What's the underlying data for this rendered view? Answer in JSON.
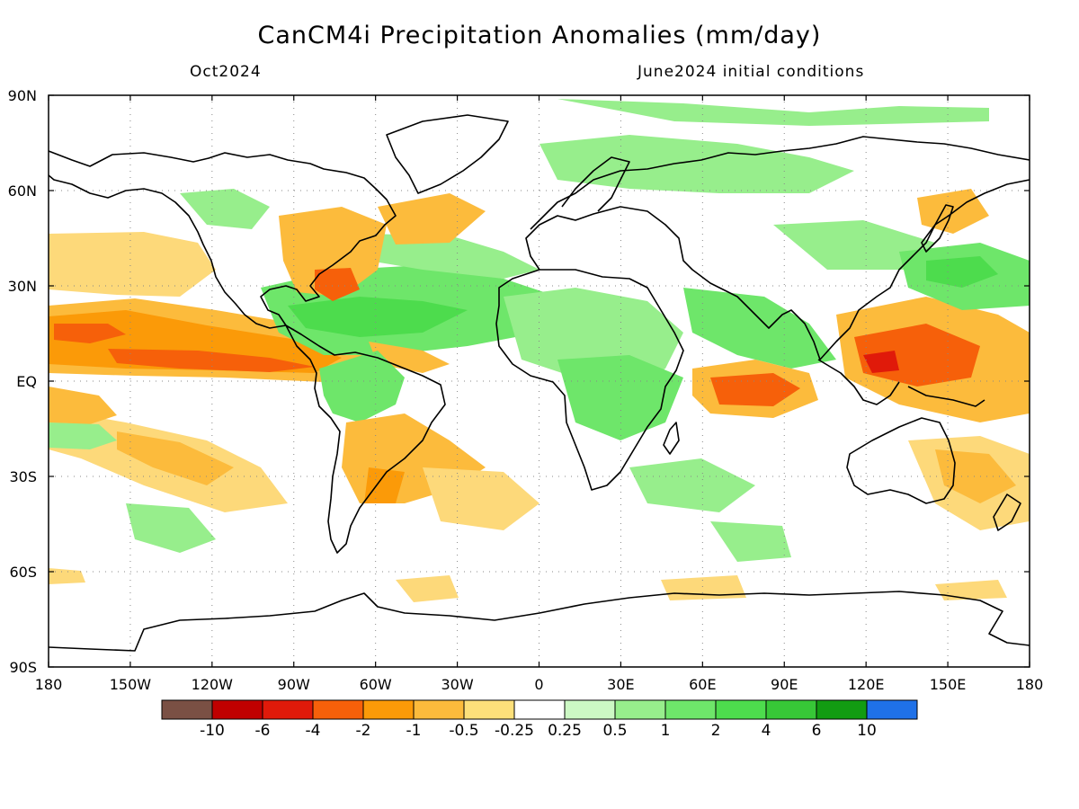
{
  "title": "CanCM4i Precipitation Anomalies (mm/day)",
  "valid_month": "Oct2024",
  "init_label": "June2024 initial conditions",
  "lat_labels": [
    "90N",
    "60N",
    "30N",
    "EQ",
    "30S",
    "60S",
    "90S"
  ],
  "lon_labels": [
    "180",
    "150W",
    "120W",
    "90W",
    "60W",
    "30W",
    "0",
    "30E",
    "60E",
    "90E",
    "120E",
    "150E",
    "180"
  ],
  "colorbar": {
    "colors": [
      "#7a5044",
      "#c00000",
      "#e01a0a",
      "#f6600a",
      "#fb9a08",
      "#fcbb3c",
      "#fde07a",
      "#ffffff",
      "#ccf8c4",
      "#97ee8c",
      "#6ee66a",
      "#4ddc4d",
      "#37c737",
      "#129c12",
      "#1f71e8"
    ],
    "labels": [
      "-10",
      "-6",
      "-4",
      "-2",
      "-1",
      "-0.5",
      "-0.25",
      "0.25",
      "0.5",
      "1",
      "2",
      "4",
      "6",
      "10"
    ]
  }
}
